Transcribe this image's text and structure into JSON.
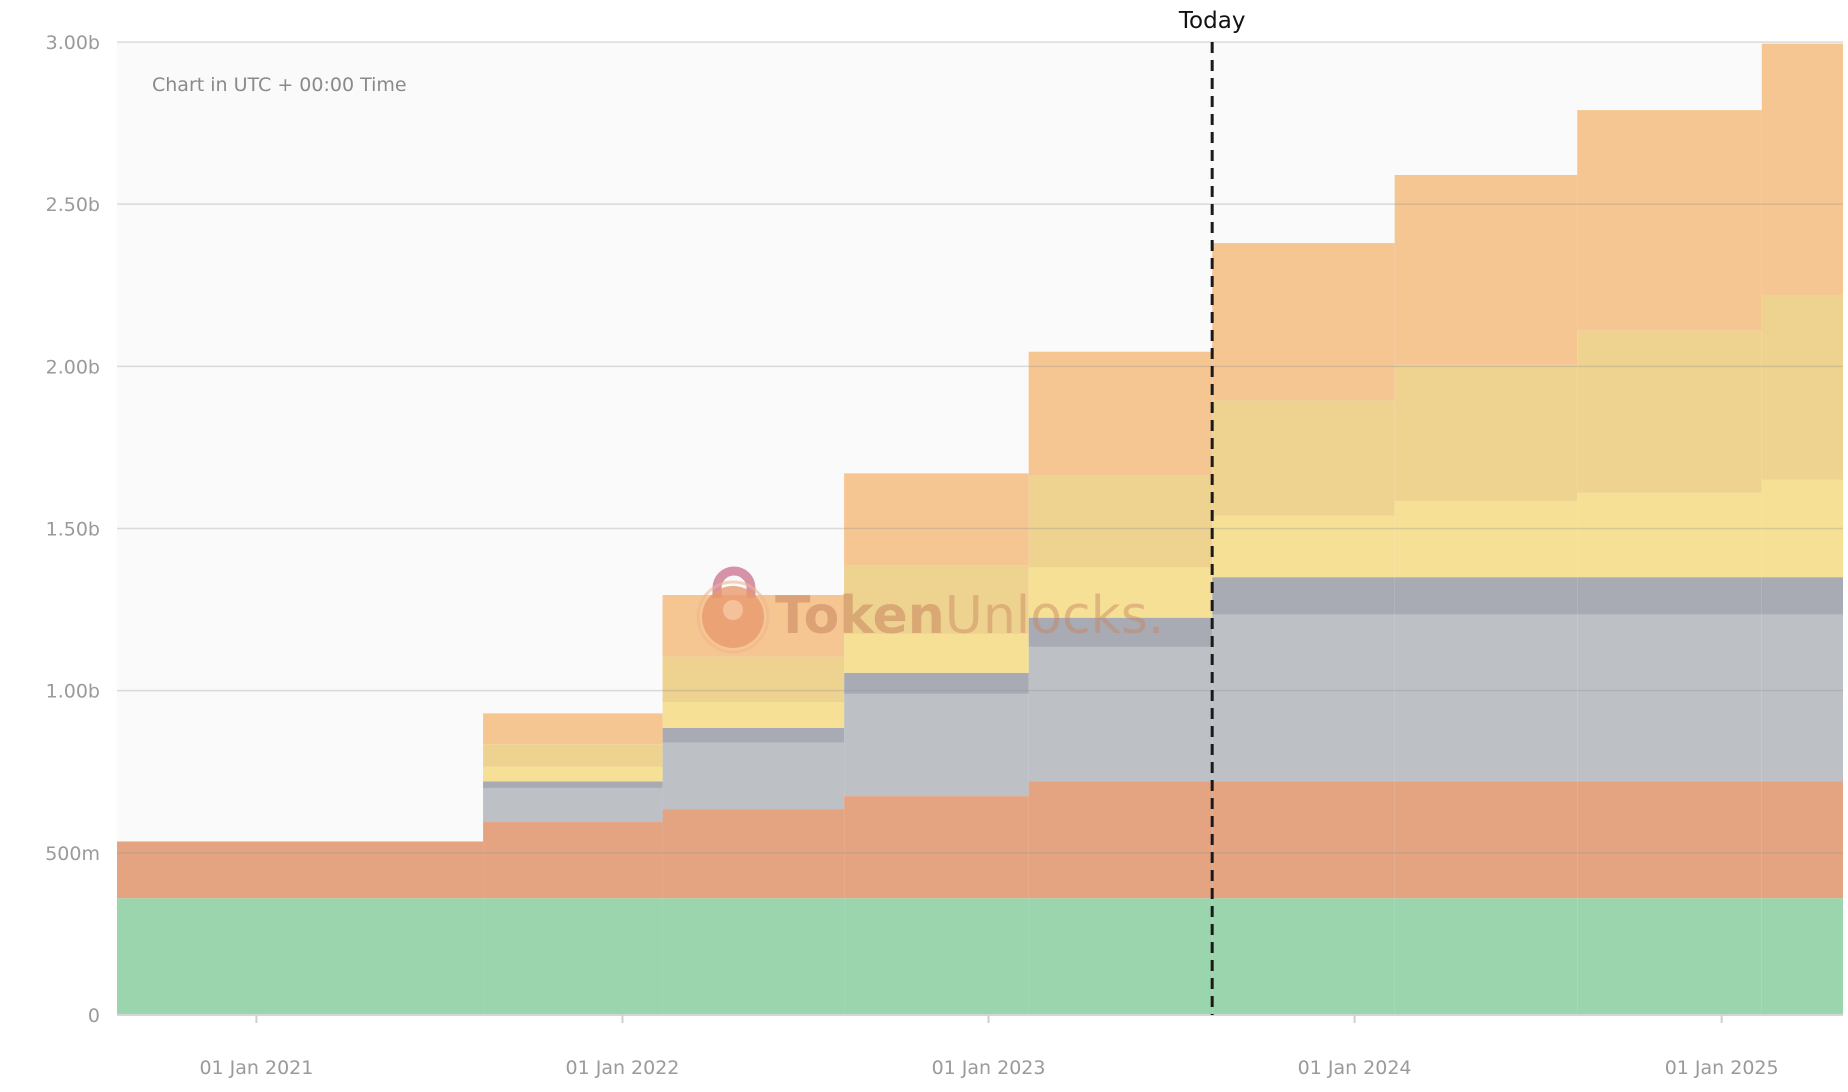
{
  "chart_data": {
    "type": "area",
    "subtitle": "Chart in UTC + 00:00 Time",
    "today_label": "Today",
    "today_date": "2023-08-12",
    "watermark": {
      "part1": "Token",
      "part2": "Unlocks."
    },
    "x_range": [
      "2020-08-15",
      "2025-05-02"
    ],
    "y_range": [
      0,
      3000000000
    ],
    "y_ticks": [
      {
        "value": 0,
        "label": "0"
      },
      {
        "value": 500000000,
        "label": "500m"
      },
      {
        "value": 1000000000,
        "label": "1.00b"
      },
      {
        "value": 1500000000,
        "label": "1.50b"
      },
      {
        "value": 2000000000,
        "label": "2.00b"
      },
      {
        "value": 2500000000,
        "label": "2.50b"
      },
      {
        "value": 3000000000,
        "label": "3.00b"
      }
    ],
    "x_ticks": [
      {
        "date": "2021-01-01",
        "label": "01 Jan 2021"
      },
      {
        "date": "2022-01-01",
        "label": "01 Jan 2022"
      },
      {
        "date": "2023-01-01",
        "label": "01 Jan 2023"
      },
      {
        "date": "2024-01-01",
        "label": "01 Jan 2024"
      },
      {
        "date": "2025-01-01",
        "label": "01 Jan 2025"
      }
    ],
    "grid": true,
    "step_dates": [
      "2020-08-15",
      "2021-08-15",
      "2022-02-10",
      "2022-08-10",
      "2023-02-10",
      "2023-08-12",
      "2024-02-10",
      "2024-08-10",
      "2025-02-10"
    ],
    "series": [
      {
        "color": "#9ad5ad",
        "values": [
          360000000,
          360000000,
          360000000,
          360000000,
          360000000,
          360000000,
          360000000,
          360000000,
          360000000
        ]
      },
      {
        "color": "#e4a482",
        "values": [
          175000000,
          235000000,
          275000000,
          315000000,
          360000000,
          360000000,
          360000000,
          360000000,
          360000000
        ]
      },
      {
        "color": "#bdc1c6",
        "values": [
          0,
          105000000,
          205000000,
          315000000,
          415000000,
          515000000,
          515000000,
          515000000,
          515000000
        ]
      },
      {
        "color": "#a8abb3",
        "values": [
          0,
          20000000,
          45000000,
          65000000,
          90000000,
          115000000,
          115000000,
          115000000,
          115000000
        ]
      },
      {
        "color": "#f5e096",
        "values": [
          0,
          45000000,
          80000000,
          120000000,
          155000000,
          190000000,
          235000000,
          260000000,
          300000000
        ]
      },
      {
        "color": "#eed390",
        "values": [
          0,
          70000000,
          140000000,
          210000000,
          285000000,
          355000000,
          420000000,
          500000000,
          570000000
        ]
      },
      {
        "color": "#f5c692",
        "values": [
          0,
          95000000,
          190000000,
          285000000,
          380000000,
          485000000,
          585000000,
          680000000,
          775000000
        ]
      }
    ]
  }
}
